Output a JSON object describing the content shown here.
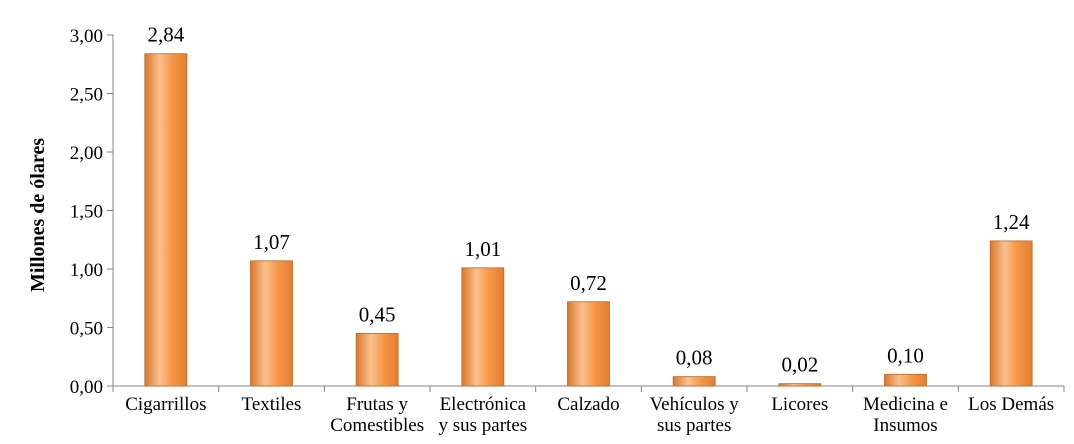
{
  "chart_data": {
    "type": "bar",
    "ylabel": "Millones de ólares",
    "xlabel": "",
    "ylim": [
      0,
      3.0
    ],
    "yticks": [
      "0,00",
      "0,50",
      "1,00",
      "1,50",
      "2,00",
      "2,50",
      "3,00"
    ],
    "grid": false,
    "legend": "none",
    "categories": [
      [
        "Cigarrillos"
      ],
      [
        "Textiles"
      ],
      [
        "Frutas y",
        "Comestibles"
      ],
      [
        "Electrónica",
        "y sus partes"
      ],
      [
        "Calzado"
      ],
      [
        "Vehículos y",
        "sus partes"
      ],
      [
        "Licores"
      ],
      [
        "Medicina e",
        "Insumos"
      ],
      [
        "Los Demás"
      ]
    ],
    "values": [
      2.84,
      1.07,
      0.45,
      1.01,
      0.72,
      0.08,
      0.02,
      0.1,
      1.24
    ],
    "data_labels": [
      "2,84",
      "1,07",
      "0,45",
      "1,01",
      "0,72",
      "0,08",
      "0,02",
      "0,10",
      "1,24"
    ],
    "colors": {
      "bar_fill": "#F79646",
      "bar_highlight": "#FBC08E",
      "bar_edge": "#B8692A",
      "axis": "#868686"
    }
  }
}
